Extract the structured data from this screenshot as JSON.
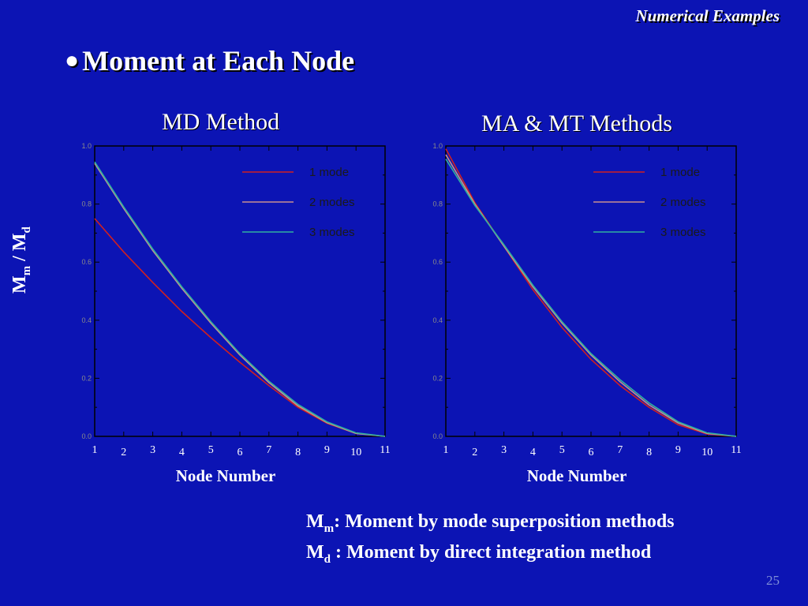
{
  "slide": {
    "corner_title": "Numerical Examples",
    "heading": "Moment at Each Node",
    "bullet": "●",
    "ylabel_main": "M",
    "ylabel_sub1": "m",
    "ylabel_mid": " / M",
    "ylabel_sub2": "d",
    "definitions": [
      {
        "symbol": "M",
        "sub": "m",
        "text": ": Moment by mode superposition methods"
      },
      {
        "symbol": "M",
        "sub": "d",
        "text": " : Moment by direct integration method"
      }
    ],
    "page_number": "25"
  },
  "colors": {
    "background": "#0c14b4",
    "plot_bg": "#0c14b4",
    "mode1": "#d02020",
    "mode2": "#c89090",
    "mode3": "#30b0a0"
  },
  "chart_data": [
    {
      "type": "line",
      "title": "MD Method",
      "xlabel": "Node Number",
      "ylabel": "",
      "x": [
        1,
        2,
        3,
        4,
        5,
        6,
        7,
        8,
        9,
        10,
        11
      ],
      "xlim": [
        1,
        11
      ],
      "ylim": [
        0.0,
        1.0
      ],
      "yticks": [
        "0.0",
        "0.2",
        "0.4",
        "0.6",
        "0.8",
        "1.0"
      ],
      "legend_position": "top-right",
      "series": [
        {
          "name": "1 mode",
          "values": [
            0.75,
            0.635,
            0.53,
            0.43,
            0.34,
            0.255,
            0.175,
            0.1,
            0.045,
            0.01,
            0.0
          ]
        },
        {
          "name": "2 modes",
          "values": [
            0.94,
            0.785,
            0.64,
            0.51,
            0.39,
            0.28,
            0.185,
            0.105,
            0.047,
            0.01,
            0.0
          ]
        },
        {
          "name": "3 modes",
          "values": [
            0.945,
            0.79,
            0.645,
            0.515,
            0.395,
            0.285,
            0.19,
            0.11,
            0.05,
            0.012,
            0.0
          ]
        }
      ]
    },
    {
      "type": "line",
      "title": "MA & MT Methods",
      "xlabel": "Node Number",
      "ylabel": "",
      "x": [
        1,
        2,
        3,
        4,
        5,
        6,
        7,
        8,
        9,
        10,
        11
      ],
      "xlim": [
        1,
        11
      ],
      "ylim": [
        0.0,
        1.0
      ],
      "yticks": [
        "0.0",
        "0.2",
        "0.4",
        "0.6",
        "0.8",
        "1.0"
      ],
      "legend_position": "top-right",
      "series": [
        {
          "name": "1 mode",
          "values": [
            0.99,
            0.805,
            0.655,
            0.505,
            0.375,
            0.265,
            0.175,
            0.1,
            0.04,
            0.008,
            0.0
          ]
        },
        {
          "name": "2 modes",
          "values": [
            0.97,
            0.8,
            0.655,
            0.515,
            0.39,
            0.28,
            0.188,
            0.108,
            0.046,
            0.01,
            0.0
          ]
        },
        {
          "name": "3 modes",
          "values": [
            0.955,
            0.795,
            0.66,
            0.52,
            0.395,
            0.285,
            0.195,
            0.115,
            0.05,
            0.012,
            0.0
          ]
        }
      ]
    }
  ]
}
